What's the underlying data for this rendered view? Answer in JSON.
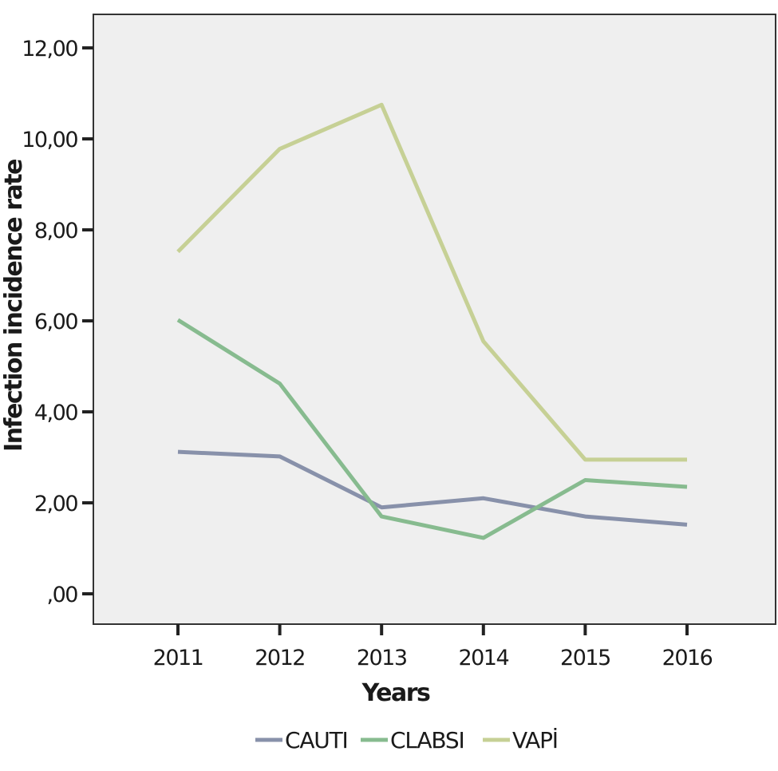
{
  "chart_data": {
    "type": "line",
    "xlabel": "Years",
    "ylabel": "Infection incidence rate",
    "categories": [
      "2011",
      "2012",
      "2013",
      "2014",
      "2015",
      "2016"
    ],
    "ylim": [
      0,
      12
    ],
    "yticks": [
      0,
      2,
      4,
      6,
      8,
      10,
      12
    ],
    "ytick_labels": [
      ",00",
      "2,00",
      "4,00",
      "6,00",
      "8,00",
      "10,00",
      "12,00"
    ],
    "grid": false,
    "legend_position": "bottom",
    "plot_background": "#efefef",
    "series": [
      {
        "name": "CAUTI",
        "color": "#8891aa",
        "values": [
          3.12,
          3.02,
          1.9,
          2.1,
          1.7,
          1.52
        ]
      },
      {
        "name": "CLABSI",
        "color": "#87bb8f",
        "values": [
          6.02,
          4.62,
          1.7,
          1.23,
          2.5,
          2.35
        ]
      },
      {
        "name": "VAPİ",
        "color": "#c6d095",
        "values": [
          7.52,
          9.78,
          10.75,
          5.55,
          2.95,
          2.95
        ]
      }
    ]
  }
}
